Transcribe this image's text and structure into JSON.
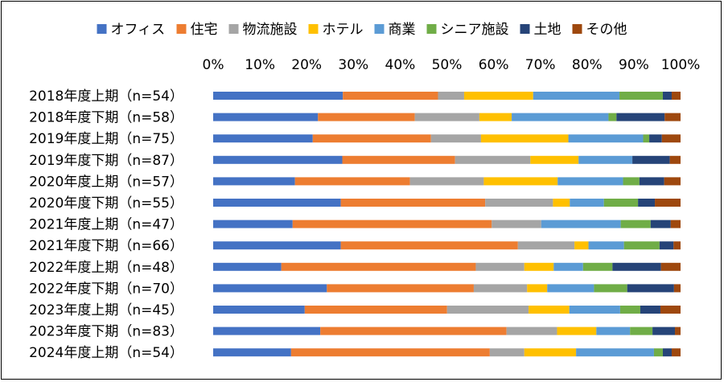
{
  "chart_data": {
    "type": "bar",
    "orientation": "horizontal",
    "stacked": "percent",
    "title": "",
    "xlabel": "",
    "ylabel": "",
    "xlim": [
      0,
      100
    ],
    "x_ticks": [
      "0%",
      "10%",
      "20%",
      "30%",
      "40%",
      "50%",
      "60%",
      "70%",
      "80%",
      "90%",
      "100%"
    ],
    "legend_position": "top",
    "grid": false,
    "categories": [
      "2018年度上期（n=54）",
      "2018年度下期（n=58）",
      "2019年度上期（n=75）",
      "2019年度下期（n=87）",
      "2020年度上期（n=57）",
      "2020年度下期（n=55）",
      "2021年度上期（n=47）",
      "2021年度下期（n=66）",
      "2022年度上期（n=48）",
      "2022年度下期（n=70）",
      "2023年度上期（n=45）",
      "2023年度下期（n=83）",
      "2024年度上期（n=54）"
    ],
    "series": [
      {
        "name": "オフィス",
        "color": "#4472c4",
        "values": [
          27.8,
          22.4,
          21.3,
          27.6,
          17.5,
          27.3,
          17.0,
          27.3,
          14.6,
          24.3,
          20.0,
          22.9,
          16.7
        ]
      },
      {
        "name": "住宅",
        "color": "#ed7d31",
        "values": [
          20.4,
          20.7,
          25.3,
          24.1,
          24.6,
          30.9,
          42.6,
          37.9,
          41.7,
          31.4,
          31.1,
          39.8,
          42.6
        ]
      },
      {
        "name": "物流施設",
        "color": "#a5a5a5",
        "values": [
          5.6,
          13.8,
          10.7,
          16.1,
          15.8,
          14.5,
          10.6,
          12.1,
          10.4,
          11.4,
          17.8,
          10.8,
          7.4
        ]
      },
      {
        "name": "ホテル",
        "color": "#ffc000",
        "values": [
          14.8,
          6.9,
          18.7,
          10.3,
          15.8,
          3.6,
          0.0,
          3.0,
          6.3,
          4.3,
          8.9,
          8.4,
          11.1
        ]
      },
      {
        "name": "商業",
        "color": "#5b9bd5",
        "values": [
          18.5,
          20.7,
          16.0,
          11.5,
          14.0,
          7.3,
          17.0,
          7.6,
          6.3,
          10.0,
          11.1,
          7.2,
          16.7
        ]
      },
      {
        "name": "シニア施設",
        "color": "#70ad47",
        "values": [
          9.3,
          1.7,
          1.3,
          0.0,
          3.5,
          7.3,
          6.4,
          7.6,
          6.3,
          7.1,
          4.4,
          4.8,
          1.9
        ]
      },
      {
        "name": "土地",
        "color": "#264478",
        "values": [
          1.9,
          10.3,
          2.7,
          8.0,
          5.3,
          3.6,
          4.3,
          3.0,
          10.4,
          10.0,
          4.4,
          4.8,
          1.9
        ]
      },
      {
        "name": "その他",
        "color": "#9e480e",
        "values": [
          1.9,
          3.4,
          4.0,
          2.3,
          3.5,
          5.5,
          2.1,
          1.5,
          4.2,
          1.4,
          4.4,
          1.2,
          1.9
        ]
      }
    ]
  }
}
